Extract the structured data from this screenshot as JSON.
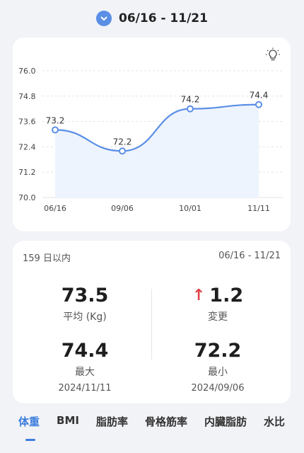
{
  "header": {
    "range": "06/16 - 11/21"
  },
  "colors": {
    "accent": "#3b7ddd",
    "line": "#5b8fe6",
    "up": "#e0434b"
  },
  "chart_data": {
    "type": "line",
    "x": [
      "06/16",
      "09/06",
      "10/01",
      "11/11"
    ],
    "series": [
      {
        "values": [
          73.2,
          72.2,
          74.2,
          74.4
        ]
      }
    ],
    "data_labels": [
      "73.2",
      "72.2",
      "74.2",
      "74.4"
    ],
    "y_ticks": [
      "76.0",
      "74.8",
      "73.6",
      "72.4",
      "71.2",
      "70.0"
    ],
    "ylim": [
      70.0,
      76.0
    ],
    "grid": true
  },
  "stats": {
    "days": "159 日以内",
    "range": "06/16 - 11/21",
    "average": {
      "value": "73.5",
      "label": "平均 (Kg)"
    },
    "change": {
      "value": "1.2",
      "label": "変更",
      "direction": "up"
    },
    "max": {
      "value": "74.4",
      "label": "最大",
      "date": "2024/11/11"
    },
    "min": {
      "value": "72.2",
      "label": "最小",
      "date": "2024/09/06"
    }
  },
  "tabs": [
    "体重",
    "BMI",
    "脂肪率",
    "骨格筋率",
    "内臓脂肪",
    "水比"
  ],
  "icons": {
    "range_toggle": "chevron-down-icon",
    "tips": "lightbulb-icon",
    "change": "arrow-up-icon"
  }
}
